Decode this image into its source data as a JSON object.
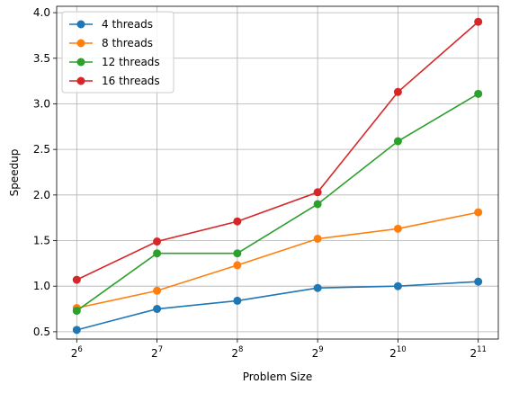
{
  "chart_data": {
    "type": "line",
    "title": "",
    "xlabel": "Problem Size",
    "ylabel": "Speedup",
    "x": [
      64,
      128,
      256,
      512,
      1024,
      2048
    ],
    "x_scale": "log2",
    "x_tick_labels": [
      {
        "base": "2",
        "exp": "6"
      },
      {
        "base": "2",
        "exp": "7"
      },
      {
        "base": "2",
        "exp": "8"
      },
      {
        "base": "2",
        "exp": "9"
      },
      {
        "base": "2",
        "exp": "10"
      },
      {
        "base": "2",
        "exp": "11"
      }
    ],
    "y_ticks": [
      "0.5",
      "1.0",
      "1.5",
      "2.0",
      "2.5",
      "3.0",
      "3.5",
      "4.0"
    ],
    "ylim": [
      0.42,
      4.07
    ],
    "grid": true,
    "legend_position": "top-left",
    "series": [
      {
        "name": "4 threads",
        "color": "#1f77b4",
        "values": [
          0.52,
          0.75,
          0.84,
          0.98,
          1.0,
          1.05
        ]
      },
      {
        "name": "8 threads",
        "color": "#ff7f0e",
        "values": [
          0.76,
          0.95,
          1.23,
          1.52,
          1.63,
          1.81
        ]
      },
      {
        "name": "12 threads",
        "color": "#2ca02c",
        "values": [
          0.73,
          1.36,
          1.36,
          1.9,
          2.59,
          3.11
        ]
      },
      {
        "name": "16 threads",
        "color": "#d62728",
        "values": [
          1.07,
          1.49,
          1.71,
          2.03,
          3.13,
          3.9
        ]
      }
    ]
  }
}
